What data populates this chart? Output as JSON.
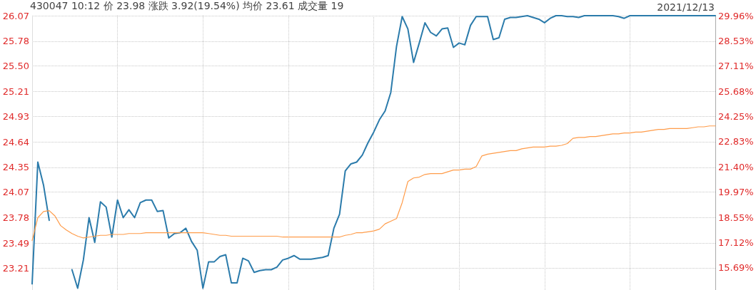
{
  "chart_data": {
    "type": "line",
    "title": "430047 10:12 价 23.98 涨跌 3.92(19.54%) 均价 23.61 成交量 19",
    "annotations": [
      "2021/12/13"
    ],
    "categories": [
      null,
      null,
      null,
      null,
      null,
      null,
      null,
      null,
      null,
      null,
      null,
      null,
      null,
      null,
      null,
      null,
      null,
      null,
      null,
      null,
      null,
      null,
      null,
      null,
      null,
      null,
      null,
      null,
      null,
      null,
      null,
      null,
      null,
      null,
      null,
      null,
      null,
      null,
      null,
      null,
      null,
      null,
      null,
      null,
      null,
      null,
      null,
      null,
      null,
      null,
      null,
      null,
      null,
      null,
      null,
      null,
      null,
      null,
      null,
      null,
      null,
      null,
      null,
      null,
      null,
      null,
      null,
      null,
      null,
      null,
      null,
      null,
      null,
      null,
      null,
      null,
      null,
      null,
      null,
      null,
      null,
      null,
      null,
      null,
      null,
      null,
      null,
      null,
      null,
      null,
      null,
      null,
      null,
      null,
      null,
      null,
      null,
      null,
      null,
      null,
      null,
      null,
      null,
      null,
      null,
      null,
      null,
      null,
      null,
      null,
      null,
      null,
      null,
      null,
      null,
      null,
      null,
      null,
      null,
      null,
      null
    ],
    "series": [
      {
        "color": "#2b7bab",
        "values": [
          23.03,
          24.41,
          24.15,
          23.75,
          null,
          null,
          null,
          23.19,
          22.98,
          23.3,
          23.78,
          23.5,
          23.96,
          23.9,
          23.56,
          23.98,
          23.78,
          23.87,
          23.78,
          23.95,
          23.98,
          23.98,
          23.85,
          23.86,
          23.55,
          23.6,
          23.61,
          23.66,
          23.51,
          23.41,
          22.98,
          23.28,
          23.28,
          23.34,
          23.36,
          23.04,
          23.04,
          23.32,
          23.29,
          23.16,
          23.18,
          23.19,
          23.19,
          23.22,
          23.3,
          23.32,
          23.35,
          23.31,
          23.31,
          23.31,
          23.32,
          23.33,
          23.35,
          23.66,
          23.82,
          24.31,
          24.39,
          24.41,
          24.49,
          24.63,
          24.75,
          24.89,
          24.99,
          25.2,
          25.72,
          26.06,
          25.92,
          25.54,
          25.76,
          25.99,
          25.88,
          25.84,
          25.92,
          25.93,
          25.71,
          25.76,
          25.74,
          25.96,
          26.06,
          26.06,
          26.06,
          25.8,
          25.82,
          26.03,
          26.05,
          26.05,
          26.06,
          26.07,
          26.05,
          26.03,
          25.99,
          26.04,
          26.07,
          26.07,
          26.06,
          26.06,
          26.05,
          26.07,
          26.07,
          26.07,
          26.07,
          26.07,
          26.07,
          26.06,
          26.04,
          26.07,
          26.07,
          26.07,
          26.07,
          26.07,
          26.07,
          26.07,
          26.07,
          26.07,
          26.07,
          26.07,
          26.07,
          26.07,
          26.07,
          26.07,
          26.07
        ]
      },
      {
        "color": "#ff9c4a",
        "values": [
          23.52,
          23.78,
          23.85,
          23.86,
          23.8,
          23.69,
          23.64,
          23.6,
          23.57,
          23.55,
          23.56,
          23.57,
          23.58,
          23.58,
          23.59,
          23.59,
          23.59,
          23.6,
          23.6,
          23.6,
          23.61,
          23.61,
          23.61,
          23.61,
          23.61,
          23.61,
          23.61,
          23.61,
          23.61,
          23.61,
          23.61,
          23.6,
          23.59,
          23.58,
          23.58,
          23.57,
          23.57,
          23.57,
          23.57,
          23.57,
          23.57,
          23.57,
          23.57,
          23.57,
          23.56,
          23.56,
          23.56,
          23.56,
          23.56,
          23.56,
          23.56,
          23.56,
          23.56,
          23.56,
          23.56,
          23.58,
          23.59,
          23.61,
          23.61,
          23.62,
          23.63,
          23.65,
          23.71,
          23.74,
          23.77,
          23.95,
          24.19,
          24.23,
          24.24,
          24.27,
          24.28,
          24.28,
          24.28,
          24.3,
          24.32,
          24.32,
          24.33,
          24.33,
          24.36,
          24.48,
          24.5,
          24.51,
          24.52,
          24.53,
          24.54,
          24.54,
          24.56,
          24.57,
          24.58,
          24.58,
          24.58,
          24.59,
          24.59,
          24.6,
          24.62,
          24.68,
          24.69,
          24.69,
          24.7,
          24.7,
          24.71,
          24.72,
          24.73,
          24.73,
          24.74,
          24.74,
          24.75,
          24.75,
          24.76,
          24.77,
          24.78,
          24.78,
          24.79,
          24.79,
          24.79,
          24.79,
          24.8,
          24.81,
          24.81,
          24.82,
          24.82
        ]
      }
    ],
    "ylim": [
      22.96,
      26.07
    ],
    "yticks": [
      23.21,
      23.49,
      23.78,
      24.07,
      24.35,
      24.64,
      24.93,
      25.21,
      {
        "value": 25.5,
        "label": "25.50"
      },
      25.78,
      26.07
    ],
    "y2lim": [
      14.44,
      29.96
    ],
    "y2ticks": [
      {
        "value": 15.69,
        "label": "15.69%"
      },
      {
        "value": 17.12,
        "label": "17.12%"
      },
      {
        "value": 18.55,
        "label": "18.55%"
      },
      {
        "value": 19.97,
        "label": "19.97%"
      },
      {
        "value": 21.4,
        "label": "21.40%"
      },
      {
        "value": 22.83,
        "label": "22.83%"
      },
      {
        "value": 24.25,
        "label": "24.25%"
      },
      {
        "value": 25.68,
        "label": "25.68%"
      },
      {
        "value": 27.11,
        "label": "27.11%"
      },
      {
        "value": 28.53,
        "label": "28.53%"
      },
      {
        "value": 29.96,
        "label": "29.96%"
      }
    ],
    "grid": true,
    "line_style": "solid",
    "tick_labels": "y"
  }
}
